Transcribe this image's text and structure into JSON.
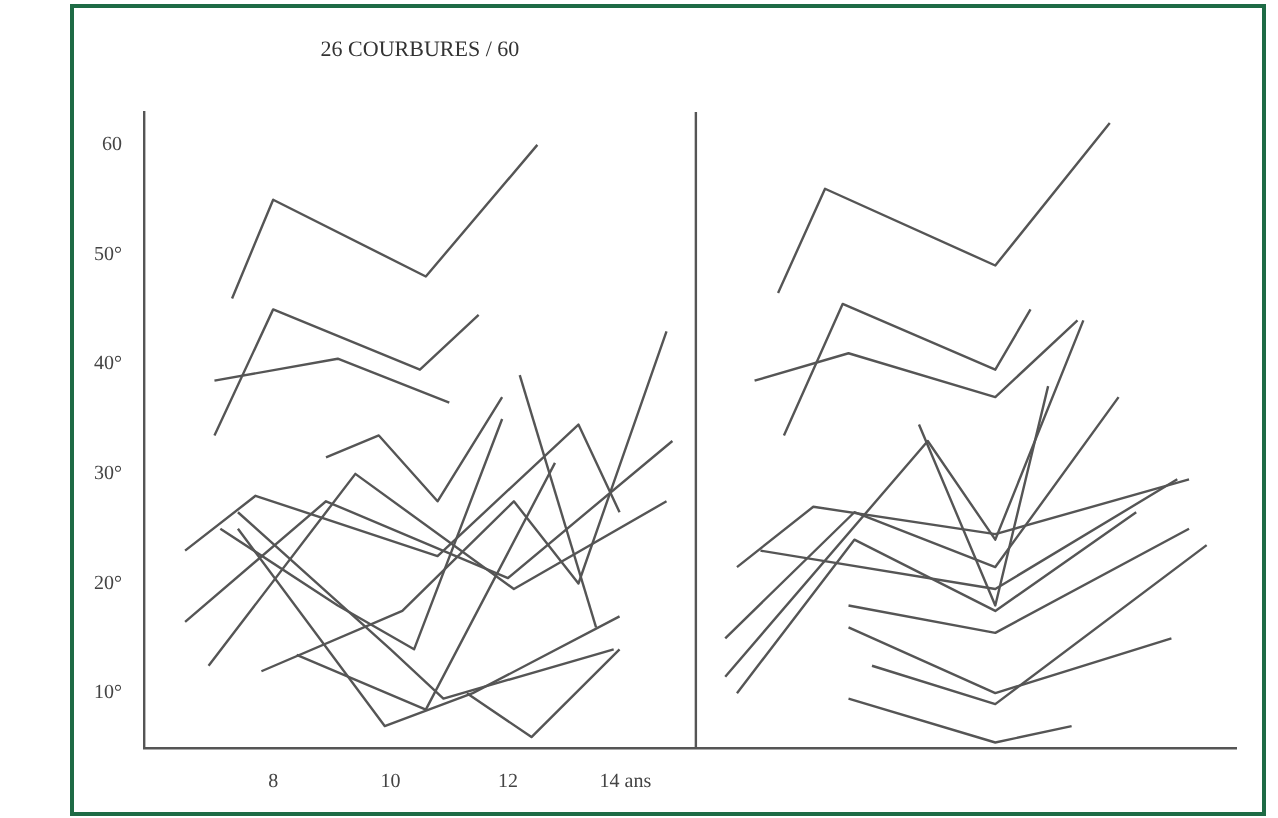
{
  "chart_data": {
    "type": "line",
    "title": "26 COURBURES / 60",
    "xlim": [
      5.8,
      24.4
    ],
    "xticks": [
      8,
      10,
      12,
      {
        "value": 14,
        "label": "14 ans"
      }
    ],
    "ylim": [
      5,
      63
    ],
    "yticks": [
      {
        "value": 10,
        "label": "10°"
      },
      {
        "value": 20,
        "label": "20°"
      },
      {
        "value": 30,
        "label": "30°"
      },
      {
        "value": 40,
        "label": "40°"
      },
      {
        "value": 50,
        "label": "50°"
      },
      60
    ],
    "grid": false,
    "legend": false,
    "marker": "none",
    "line_style": "solid",
    "ref_lines": [
      {
        "axis": "x",
        "value": 15.2,
        "color": "#555555"
      }
    ],
    "series": [
      {
        "color": "#555555",
        "x": [
          7.3,
          8.0,
          10.6,
          12.5
        ],
        "values": [
          46,
          55,
          48,
          60
        ]
      },
      {
        "color": "#555555",
        "x": [
          7.0,
          8.0,
          10.5,
          11.5
        ],
        "values": [
          33.5,
          45,
          39.5,
          44.5
        ]
      },
      {
        "color": "#555555",
        "x": [
          7.0,
          9.1,
          11.0
        ],
        "values": [
          38.5,
          40.5,
          36.5
        ]
      },
      {
        "color": "#555555",
        "x": [
          8.9,
          9.8,
          10.8,
          11.9
        ],
        "values": [
          31.5,
          33.5,
          27.5,
          37
        ]
      },
      {
        "color": "#555555",
        "x": [
          6.5,
          7.7,
          10.8,
          13.2,
          13.9
        ],
        "values": [
          23,
          28,
          22.5,
          34.5,
          26.5
        ]
      },
      {
        "color": "#555555",
        "x": [
          6.5,
          8.9,
          12.0,
          14.8
        ],
        "values": [
          16.5,
          27.5,
          20.5,
          33
        ]
      },
      {
        "color": "#555555",
        "x": [
          6.9,
          9.4,
          12.1,
          14.7
        ],
        "values": [
          12.5,
          30,
          19.5,
          27.5
        ]
      },
      {
        "color": "#555555",
        "x": [
          7.4,
          10.0,
          10.9,
          13.8
        ],
        "values": [
          26.5,
          14,
          9.5,
          14
        ]
      },
      {
        "color": "#555555",
        "x": [
          7.4,
          9.9,
          11.4,
          13.9
        ],
        "values": [
          25,
          7,
          10,
          17
        ]
      },
      {
        "color": "#555555",
        "x": [
          7.8,
          10.2,
          12.1,
          13.2,
          14.7
        ],
        "values": [
          12,
          17.5,
          27.5,
          20,
          43
        ]
      },
      {
        "color": "#555555",
        "x": [
          12.2,
          13.5
        ],
        "values": [
          39,
          16
        ]
      },
      {
        "color": "#555555",
        "x": [
          11.3,
          12.4,
          13.9
        ],
        "values": [
          10,
          6,
          14
        ]
      },
      {
        "color": "#555555",
        "x": [
          7.1,
          9.1,
          10.4,
          11.9
        ],
        "values": [
          25,
          18,
          14,
          35
        ]
      },
      {
        "color": "#555555",
        "x": [
          8.4,
          10.6,
          12.8
        ],
        "values": [
          13.5,
          8.5,
          31
        ]
      },
      {
        "color": "#555555",
        "x": [
          16.6,
          17.4,
          20.3,
          22.25
        ],
        "values": [
          46.5,
          56,
          49,
          62
        ]
      },
      {
        "color": "#555555",
        "x": [
          16.7,
          17.7,
          20.3,
          20.9
        ],
        "values": [
          33.5,
          45.5,
          39.5,
          45
        ]
      },
      {
        "color": "#555555",
        "x": [
          16.2,
          17.8,
          20.3,
          21.7
        ],
        "values": [
          38.5,
          41,
          37,
          44
        ]
      },
      {
        "color": "#555555",
        "x": [
          15.9,
          17.2,
          20.3,
          23.6
        ],
        "values": [
          21.5,
          27,
          24.5,
          29.5
        ]
      },
      {
        "color": "#555555",
        "x": [
          15.7,
          17.9,
          20.3,
          22.4
        ],
        "values": [
          15,
          26.5,
          21.5,
          37
        ]
      },
      {
        "color": "#555555",
        "x": [
          15.7,
          19.15,
          20.3,
          21.8
        ],
        "values": [
          11.5,
          33,
          24,
          44
        ]
      },
      {
        "color": "#555555",
        "x": [
          15.9,
          17.9,
          20.3,
          22.7
        ],
        "values": [
          10,
          24,
          17.5,
          26.5
        ]
      },
      {
        "color": "#555555",
        "x": [
          17.8,
          20.3,
          23.6
        ],
        "values": [
          18,
          15.5,
          25
        ]
      },
      {
        "color": "#555555",
        "x": [
          17.8,
          20.3,
          23.3
        ],
        "values": [
          16,
          10,
          15
        ]
      },
      {
        "color": "#555555",
        "x": [
          17.8,
          20.3,
          21.6
        ],
        "values": [
          9.5,
          5.5,
          7
        ]
      },
      {
        "color": "#555555",
        "x": [
          18.2,
          20.3,
          23.9
        ],
        "values": [
          12.5,
          9,
          23.5
        ]
      },
      {
        "color": "#555555",
        "x": [
          19.0,
          20.3,
          21.2
        ],
        "values": [
          34.5,
          18,
          38
        ]
      },
      {
        "color": "#555555",
        "x": [
          16.3,
          20.3,
          23.4
        ],
        "values": [
          23,
          19.5,
          29.5
        ]
      }
    ]
  }
}
